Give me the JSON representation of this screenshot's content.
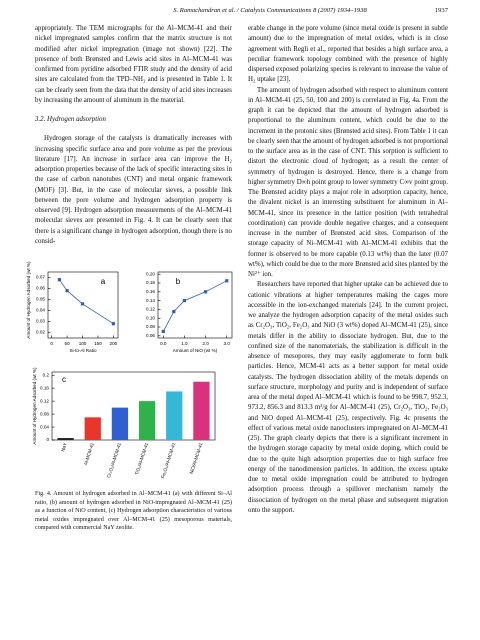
{
  "header": {
    "running_title": "S. Ramachandran et al. / Catalysis Communications 8 (2007) 1934–1938",
    "page_number": "1937"
  },
  "left_column": {
    "paragraphs_top": [
      "appropriately. The TEM micrographs for the Al–MCM-41 and their nickel impregnated samples confirm that the matrix structure is not modified after nickel impregnation (image not shown) [22]. The presence of both Brønsted and Lewis acid sites in Al–MCM-41 was confirmed from pyridine adsorbed FTIR study and the density of acid sites are calculated from the TPD–NH₃ and is presented in Table 1. It can be clearly seen from the data that the density of acid sites increases by increasing the amount of aluminum in the material."
    ],
    "heading": "3.2. Hydrogen adsorption",
    "paragraphs": [
      "Hydrogen storage of the catalysts is dramatically increases with increasing specific surface area and pore volume as per the previous literature [17]. An increase in surface area can improve the H₂ adsorption properties because of the lack of specific interacting sites in the case of carbon nanotubes (CNT) and metal organic framework (MOF) [3]. But, in the case of molecular sieves, a possible link between the pore volume and hydrogen adsorption property is observed [9]. Hydrogen adsorption measurements of the Al–MCM-41 molecular sieves are presented in Fig. 4. It can be clearly seen that there is a significant change in hydrogen adsorption, though there is no consid-"
    ]
  },
  "chart_data": [
    {
      "type": "line",
      "panel_label": "a",
      "y_label": "Amount of Hydrogen Adsorbed (wt %)",
      "x_label": "Si-to-Al Ratio",
      "x": [
        25,
        50,
        100,
        200
      ],
      "values": [
        0.068,
        0.058,
        0.046,
        0.028
      ],
      "color": "#2b5fb8",
      "xlim": [
        -12,
        215
      ],
      "xticks": [
        0,
        50,
        100,
        150,
        200
      ],
      "ylim": [
        0.015,
        0.075
      ],
      "yticks": [
        0.02,
        0.03,
        0.04,
        0.05,
        0.06,
        0.07
      ]
    },
    {
      "type": "line",
      "panel_label": "b",
      "x_label": "Amount of NiO (wt %)",
      "x": [
        0,
        0.5,
        1,
        2,
        3
      ],
      "values": [
        0.07,
        0.115,
        0.14,
        0.16,
        0.185
      ],
      "color": "#2b5fb8",
      "xlim": [
        -0.25,
        3.25
      ],
      "xticks": [
        {
          "value": 0,
          "label": "0.0"
        },
        {
          "value": 1,
          "label": "1.0"
        },
        {
          "value": 2,
          "label": "2.0"
        },
        {
          "value": 3,
          "label": "3.0"
        }
      ],
      "ylim": [
        0.055,
        0.205
      ],
      "yticks": [
        0.06,
        0.08,
        {
          "value": 0.1,
          "label": "0.10"
        },
        0.12,
        0.14,
        0.16,
        0.18,
        {
          "value": 0.2,
          "label": "0.20"
        }
      ]
    },
    {
      "type": "bar",
      "panel_label": "c",
      "y_label": "Amount of Hydrogen Adsorbed (wt %)",
      "categories": [
        "NaY",
        "Al-MCM-41",
        "Cr₂O₃/Al-MCM-41",
        "TiO₂/Al-MCM-41",
        "Fe₂O₃/Al-MCM-41",
        "NiO/Al-MCM-41"
      ],
      "values": [
        0.006,
        0.07,
        0.1,
        0.12,
        0.15,
        0.18
      ],
      "colors": [
        "#222222",
        "#e8362c",
        "#2f5fd0",
        "#2fb24a",
        "#35b8d8",
        "#d9327a"
      ],
      "ylim": [
        0,
        0.21
      ],
      "yticks": [
        0,
        0.04,
        0.08,
        0.12,
        0.16,
        0.2
      ]
    }
  ],
  "figure_caption": "Fig. 4. Amount of hydrogen adsorbed in Al–MCM-41 (a) with different Si–Al ratio, (b) amount of hydrogen adsorbed in NiO-impregnated Al–MCM-41 (25) as a function of NiO content, (c) Hydrogen adsorption characteristics of various metal oxides impregnated over Al–MCM-41 (25) mesoporous materials, compared with commercial NaY zeolite.",
  "right_column": {
    "paragraphs": [
      "erable change in the pore volume (since metal oxide is present in subtle amount) due to the impregnation of metal oxides, which is in close agreement with Regli et al., reported that besides a high surface area, a peculiar framework topology combined with the presence of highly dispersed exposed polarizing species is relevant to increase the value of H₂ uptake [23].",
      "The amount of hydrogen adsorbed with respect to aluminum content in Al–MCM-41 (25, 50, 100 and 200) is correlated in Fig. 4a. From the graph it can be depicted that the amount of hydrogen adsorbed is proportional to the aluminum content, which could be due to the increment in the protonic sites (Brønsted acid sites). From Table 1 it can be clearly seen that the amount of hydrogen adsorbed is not proportional to the surface area as in the case of CNT. This sorption is sufficient to distort the electronic cloud of hydrogen; as a result the center of symmetry of hydrogen is destroyed. Hence, there is a change from higher symmetry D∞h point group to lower symmetry C∞v point group. The Brønsted acidity plays a major role in adsorption capacity, hence, the divalent nickel is an interesting substituent for aluminum in Al–MCM-41, since its presence in the lattice position (with tetrahedral coordination) can provide double negative charges, and a consequent increase in the number of Brønsted acid sites. Comparison of the storage capacity of Ni–MCM-41 with Al–MCM-41 exhibits that the former is observed to be more capable (0.13 wt%) than the later (0.07 wt%), which could be due to the more Brønsted acid sites planted by the Ni²⁺ ion.",
      "Researchers have reported that higher uptake can be achieved due to cationic vibrations at higher temperatures making the cages more accessible in the ion-exchanged materials [24]. In the current project, we analyze the hydrogen adsorption capacity of the metal oxides such as Cr₂O₃, TiO₂, Fe₂O₃ and NiO (3 wt%) doped Al–MCM-41 (25), since metals differ in the ability to dissociate hydrogen. But, due to the confined size of the nanomaterials, the stabilization is difficult in the absence of mesopores, they may easily agglomerate to form bulk particles. Hence, MCM-41 acts as a better support for metal oxide catalysts. The hydrogen dissociation ability of the metals depends on surface structure, morphology and purity and is independent of surface area of the metal doped Al–MCM-41 which is found to be 998.7, 952.3, 973.2, 856.3 and 813.3 m²/g for Al–MCM-41 (25), Cr₂O₃, TiO₂, Fe₂O₃ and NiO doped Al–MCM-41 (25), respectively. Fig. 4c presents the effect of various metal oxide nanoclusters impregnated on Al–MCM-41 (25). The graph clearly depicts that there is a significant increment in the hydrogen storage capacity by metal oxide doping, which could be due to the quite high adsorption properties due to high surface free energy of the nanodimension particles. In addition, the excess uptake due to metal oxide impregnation could be attributed to hydrogen adsorption process through a spillover mechanism namely the dissociation of hydrogen on the metal phase and subsequent migration onto the support."
    ]
  }
}
